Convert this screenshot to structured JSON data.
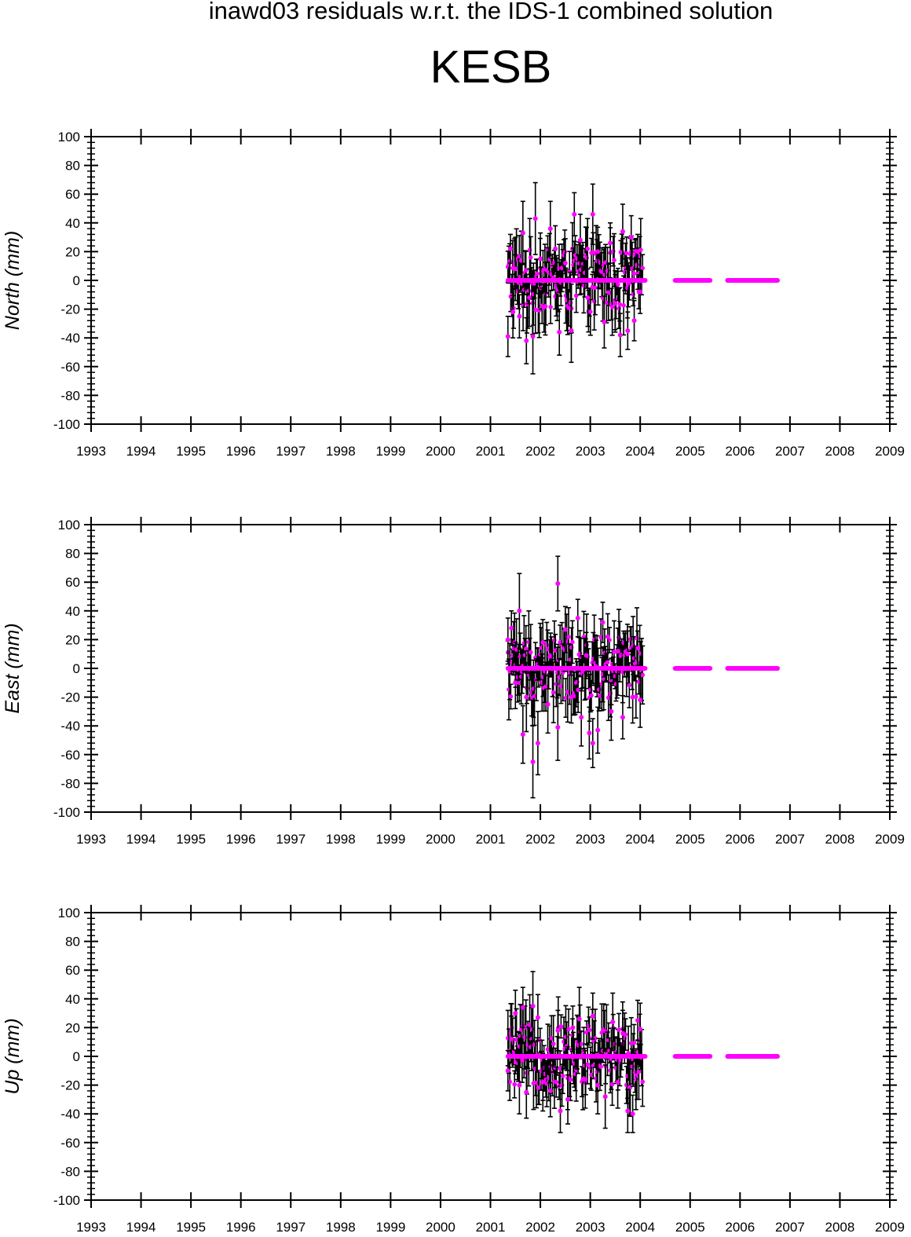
{
  "figure": {
    "title": "inawd03 residuals w.r.t. the IDS-1 combined solution",
    "station": "KESB"
  },
  "colors": {
    "marker": "#ff00ff",
    "errorbar": "#000000",
    "axes": "#000000",
    "background": "#ffffff"
  },
  "chart_data": [
    {
      "type": "scatter",
      "panel": "north",
      "ylabel": "North (mm)",
      "xlim": [
        1993,
        2009
      ],
      "ylim": [
        -100,
        100
      ],
      "x_ticks": [
        1993,
        1994,
        1995,
        1996,
        1997,
        1998,
        1999,
        2000,
        2001,
        2002,
        2003,
        2004,
        2005,
        2006,
        2007,
        2008,
        2009
      ],
      "y_ticks": [
        -100,
        -80,
        -60,
        -40,
        -20,
        0,
        20,
        40,
        60,
        80,
        100
      ],
      "grid": false,
      "point_range": [
        2001.35,
        2004.05
      ],
      "point_spacing_years": 0.019,
      "points": [
        {
          "x": 2001.35,
          "y": -39,
          "err": 14
        },
        {
          "x": 2001.4,
          "y": 22,
          "err": 10
        },
        {
          "x": 2001.45,
          "y": -22,
          "err": 18
        },
        {
          "x": 2001.5,
          "y": 8,
          "err": 22
        },
        {
          "x": 2001.58,
          "y": -25,
          "err": 15
        },
        {
          "x": 2001.65,
          "y": 33,
          "err": 22
        },
        {
          "x": 2001.72,
          "y": -42,
          "err": 16
        },
        {
          "x": 2001.78,
          "y": -12,
          "err": 20
        },
        {
          "x": 2001.85,
          "y": -39,
          "err": 26
        },
        {
          "x": 2001.9,
          "y": 43,
          "err": 25
        },
        {
          "x": 2002.0,
          "y": 15,
          "err": 18
        },
        {
          "x": 2002.1,
          "y": -18,
          "err": 20
        },
        {
          "x": 2002.2,
          "y": 36,
          "err": 19
        },
        {
          "x": 2002.3,
          "y": 22,
          "err": 16
        },
        {
          "x": 2002.38,
          "y": -36,
          "err": 16
        },
        {
          "x": 2002.5,
          "y": 12,
          "err": 17
        },
        {
          "x": 2002.62,
          "y": -35,
          "err": 22
        },
        {
          "x": 2002.68,
          "y": 46,
          "err": 15
        },
        {
          "x": 2002.8,
          "y": 28,
          "err": 18
        },
        {
          "x": 2002.95,
          "y": -12,
          "err": 20
        },
        {
          "x": 2003.05,
          "y": 46,
          "err": 21
        },
        {
          "x": 2003.15,
          "y": 20,
          "err": 17
        },
        {
          "x": 2003.28,
          "y": -29,
          "err": 18
        },
        {
          "x": 2003.4,
          "y": 26,
          "err": 14
        },
        {
          "x": 2003.5,
          "y": -16,
          "err": 20
        },
        {
          "x": 2003.6,
          "y": -38,
          "err": 15
        },
        {
          "x": 2003.65,
          "y": 34,
          "err": 19
        },
        {
          "x": 2003.75,
          "y": -35,
          "err": 13
        },
        {
          "x": 2003.82,
          "y": 30,
          "err": 15
        },
        {
          "x": 2003.88,
          "y": -28,
          "err": 14
        },
        {
          "x": 2003.95,
          "y": 20,
          "err": 12
        },
        {
          "x": 2004.0,
          "y": -8,
          "err": 15
        }
      ],
      "zero_segments": [
        [
          2001.35,
          2004.1
        ],
        [
          2004.7,
          2005.4
        ],
        [
          2005.75,
          2006.75
        ]
      ]
    },
    {
      "type": "scatter",
      "panel": "east",
      "ylabel": "East (mm)",
      "xlim": [
        1993,
        2009
      ],
      "ylim": [
        -100,
        100
      ],
      "x_ticks": [
        1993,
        1994,
        1995,
        1996,
        1997,
        1998,
        1999,
        2000,
        2001,
        2002,
        2003,
        2004,
        2005,
        2006,
        2007,
        2008,
        2009
      ],
      "y_ticks": [
        -100,
        -80,
        -60,
        -40,
        -20,
        0,
        20,
        40,
        60,
        80,
        100
      ],
      "grid": false,
      "point_range": [
        2001.35,
        2004.05
      ],
      "point_spacing_years": 0.019,
      "points": [
        {
          "x": 2001.35,
          "y": 20,
          "err": 15
        },
        {
          "x": 2001.42,
          "y": 28,
          "err": 12
        },
        {
          "x": 2001.5,
          "y": -10,
          "err": 18
        },
        {
          "x": 2001.58,
          "y": 40,
          "err": 26
        },
        {
          "x": 2001.65,
          "y": -46,
          "err": 20
        },
        {
          "x": 2001.72,
          "y": -20,
          "err": 24
        },
        {
          "x": 2001.85,
          "y": -65,
          "err": 25
        },
        {
          "x": 2001.95,
          "y": -52,
          "err": 22
        },
        {
          "x": 2002.05,
          "y": 18,
          "err": 16
        },
        {
          "x": 2002.15,
          "y": -25,
          "err": 20
        },
        {
          "x": 2002.35,
          "y": 59,
          "err": 19
        },
        {
          "x": 2002.35,
          "y": -41,
          "err": 23
        },
        {
          "x": 2002.5,
          "y": 27,
          "err": 16
        },
        {
          "x": 2002.62,
          "y": -20,
          "err": 18
        },
        {
          "x": 2002.75,
          "y": 35,
          "err": 13
        },
        {
          "x": 2002.82,
          "y": -34,
          "err": 20
        },
        {
          "x": 2002.92,
          "y": 9,
          "err": 16
        },
        {
          "x": 2002.98,
          "y": -45,
          "err": 18
        },
        {
          "x": 2003.05,
          "y": -52,
          "err": 17
        },
        {
          "x": 2003.15,
          "y": -43,
          "err": 16
        },
        {
          "x": 2003.25,
          "y": 32,
          "err": 14
        },
        {
          "x": 2003.35,
          "y": 22,
          "err": 16
        },
        {
          "x": 2003.42,
          "y": -30,
          "err": 20
        },
        {
          "x": 2003.55,
          "y": 12,
          "err": 16
        },
        {
          "x": 2003.65,
          "y": -34,
          "err": 15
        },
        {
          "x": 2003.75,
          "y": 10,
          "err": 16
        },
        {
          "x": 2003.85,
          "y": -20,
          "err": 18
        },
        {
          "x": 2003.95,
          "y": 14,
          "err": 12
        },
        {
          "x": 2004.0,
          "y": -22,
          "err": 19
        }
      ],
      "zero_segments": [
        [
          2001.35,
          2004.1
        ],
        [
          2004.7,
          2005.4
        ],
        [
          2005.75,
          2006.75
        ]
      ]
    },
    {
      "type": "scatter",
      "panel": "up",
      "ylabel": "Up (mm)",
      "xlim": [
        1993,
        2009
      ],
      "ylim": [
        -100,
        100
      ],
      "x_ticks": [
        1993,
        1994,
        1995,
        1996,
        1997,
        1998,
        1999,
        2000,
        2001,
        2002,
        2003,
        2004,
        2005,
        2006,
        2007,
        2008,
        2009
      ],
      "y_ticks": [
        -100,
        -80,
        -60,
        -40,
        -20,
        0,
        20,
        40,
        60,
        80,
        100
      ],
      "grid": false,
      "point_range": [
        2001.35,
        2004.05
      ],
      "point_spacing_years": 0.019,
      "points": [
        {
          "x": 2001.35,
          "y": -10,
          "err": 14
        },
        {
          "x": 2001.42,
          "y": 12,
          "err": 16
        },
        {
          "x": 2001.5,
          "y": 30,
          "err": 16
        },
        {
          "x": 2001.58,
          "y": -20,
          "err": 20
        },
        {
          "x": 2001.65,
          "y": 34,
          "err": 14
        },
        {
          "x": 2001.72,
          "y": -25,
          "err": 18
        },
        {
          "x": 2001.85,
          "y": 35,
          "err": 24
        },
        {
          "x": 2001.95,
          "y": 27,
          "err": 16
        },
        {
          "x": 2002.05,
          "y": -18,
          "err": 20
        },
        {
          "x": 2002.2,
          "y": -24,
          "err": 18
        },
        {
          "x": 2002.35,
          "y": 18,
          "err": 14
        },
        {
          "x": 2002.4,
          "y": -38,
          "err": 15
        },
        {
          "x": 2002.55,
          "y": -30,
          "err": 17
        },
        {
          "x": 2002.65,
          "y": 20,
          "err": 15
        },
        {
          "x": 2002.78,
          "y": 26,
          "err": 22
        },
        {
          "x": 2002.9,
          "y": -16,
          "err": 20
        },
        {
          "x": 2003.05,
          "y": 28,
          "err": 16
        },
        {
          "x": 2003.15,
          "y": -20,
          "err": 20
        },
        {
          "x": 2003.3,
          "y": -28,
          "err": 22
        },
        {
          "x": 2003.45,
          "y": 24,
          "err": 20
        },
        {
          "x": 2003.55,
          "y": -18,
          "err": 18
        },
        {
          "x": 2003.65,
          "y": 16,
          "err": 16
        },
        {
          "x": 2003.75,
          "y": -38,
          "err": 15
        },
        {
          "x": 2003.85,
          "y": -40,
          "err": 13
        },
        {
          "x": 2003.95,
          "y": 25,
          "err": 14
        },
        {
          "x": 2004.0,
          "y": 19,
          "err": 18
        }
      ],
      "zero_segments": [
        [
          2001.35,
          2004.1
        ],
        [
          2004.7,
          2005.4
        ],
        [
          2005.75,
          2006.75
        ]
      ]
    }
  ]
}
